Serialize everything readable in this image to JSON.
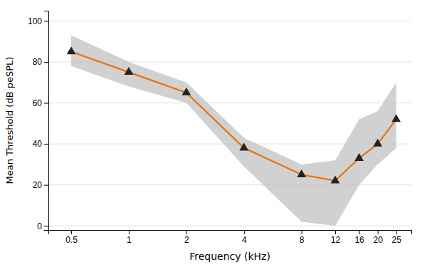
{
  "chart_data": {
    "type": "line",
    "xlabel": "Frequency (kHz)",
    "ylabel": "Mean Threshold (dB peSPL)",
    "x": [
      0.5,
      1,
      2,
      4,
      8,
      12,
      16,
      20,
      25
    ],
    "series": [
      {
        "values": [
          85,
          75,
          65,
          38,
          25,
          22,
          33,
          40,
          52
        ],
        "upper": [
          93,
          80,
          70,
          43,
          30,
          32,
          52,
          56,
          70
        ],
        "lower": [
          78,
          68,
          60,
          29,
          2,
          0,
          20,
          30,
          38
        ],
        "color": "#E8720C",
        "marker": "triangle"
      }
    ],
    "log": "x",
    "xlim": [
      0.38,
      30
    ],
    "xticks": [
      0.5,
      1,
      2,
      4,
      8,
      12,
      16,
      20,
      25
    ],
    "ylim": [
      -2,
      105
    ],
    "yticks": [
      0,
      20,
      40,
      60,
      80,
      100
    ],
    "grid": true
  }
}
